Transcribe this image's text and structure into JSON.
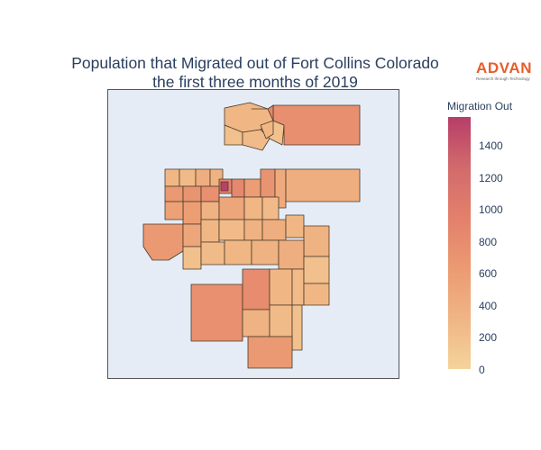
{
  "chart": {
    "title_line1": "Population that Migrated out of Fort Collins Colorado",
    "title_line2": "the first three months of 2019"
  },
  "logo": {
    "word": "ADVAN",
    "tagline": "Research through Technology"
  },
  "colorbar": {
    "title": "Migration Out",
    "ticks": [
      "1400",
      "1200",
      "1000",
      "800",
      "600",
      "400",
      "200",
      "0"
    ]
  },
  "colors": {
    "scale": [
      "#f4d39b",
      "#f0b584",
      "#eb9a72",
      "#e3806b",
      "#d26a6c",
      "#b63e68"
    ],
    "map_background": "#e5ecf6",
    "border": "#4a3a2a"
  },
  "chart_data": {
    "type": "choropleth",
    "color_scale_range": [
      0,
      1580
    ],
    "regions_values_estimate": [
      300,
      200,
      250,
      180,
      760,
      850,
      300,
      250,
      400,
      350,
      650,
      700,
      900,
      750,
      850,
      600,
      1550,
      700,
      450,
      400,
      350,
      500,
      300,
      250,
      600,
      550,
      650,
      500,
      300,
      250,
      350,
      400,
      300,
      350,
      200,
      250,
      300,
      350,
      400,
      750,
      800,
      300,
      250,
      200,
      300,
      350,
      250,
      200,
      650,
      300
    ]
  }
}
